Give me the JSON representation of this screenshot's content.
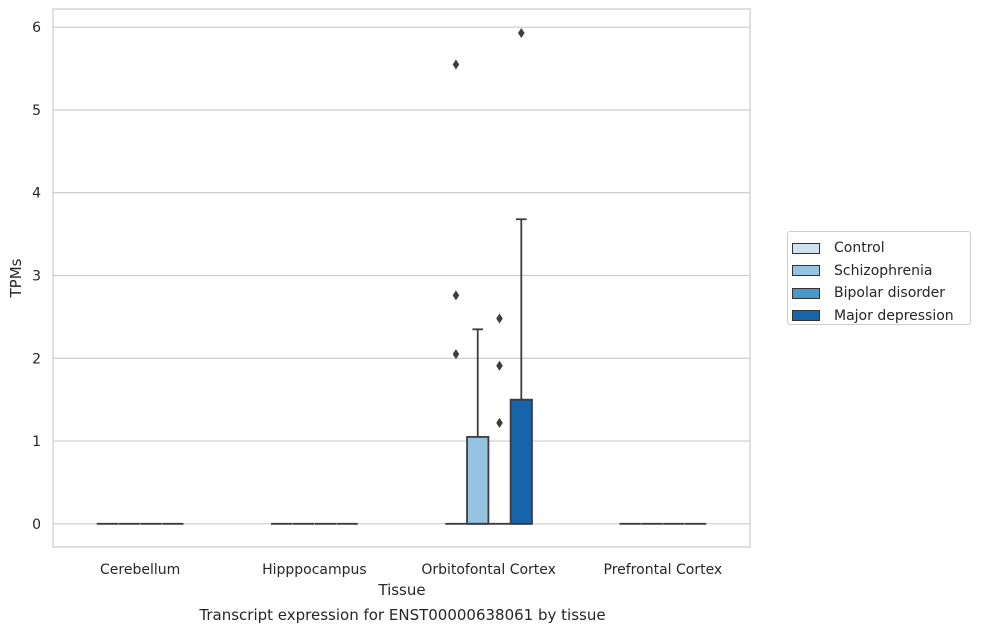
{
  "chart_data": {
    "type": "box",
    "title": "",
    "caption": "Transcript expression for ENST00000638061 by tissue",
    "xlabel": "Tissue",
    "ylabel": "TPMs",
    "ylim": [
      -0.28,
      6.22
    ],
    "yticks": [
      "0",
      "1",
      "2",
      "3",
      "4",
      "5",
      "6"
    ],
    "grid": true,
    "legend_position": "right",
    "categories": [
      "Cerebellum",
      "Hipppocampus",
      "Orbitofontal Cortex",
      "Prefrontal Cortex"
    ],
    "series": [
      {
        "name": "Control",
        "color": "#d0e1f2",
        "boxes": [
          {
            "q1": 0,
            "median": 0,
            "q3": 0,
            "whisker_low": 0,
            "whisker_high": 0,
            "outliers": []
          },
          {
            "q1": 0,
            "median": 0,
            "q3": 0,
            "whisker_low": 0,
            "whisker_high": 0,
            "outliers": []
          },
          {
            "q1": 0,
            "median": 0,
            "q3": 0,
            "whisker_low": 0,
            "whisker_high": 0,
            "outliers": [
              2.05,
              2.76,
              5.55
            ]
          },
          {
            "q1": 0,
            "median": 0,
            "q3": 0,
            "whisker_low": 0,
            "whisker_high": 0,
            "outliers": []
          }
        ]
      },
      {
        "name": "Schizophrenia",
        "color": "#94c4df",
        "boxes": [
          {
            "q1": 0,
            "median": 0,
            "q3": 0,
            "whisker_low": 0,
            "whisker_high": 0,
            "outliers": []
          },
          {
            "q1": 0,
            "median": 0,
            "q3": 0,
            "whisker_low": 0,
            "whisker_high": 0,
            "outliers": []
          },
          {
            "q1": 0,
            "median": 0,
            "q3": 1.05,
            "whisker_low": 0,
            "whisker_high": 2.35,
            "outliers": []
          },
          {
            "q1": 0,
            "median": 0,
            "q3": 0,
            "whisker_low": 0,
            "whisker_high": 0,
            "outliers": []
          }
        ]
      },
      {
        "name": "Bipolar disorder",
        "color": "#4a98c9",
        "boxes": [
          {
            "q1": 0,
            "median": 0,
            "q3": 0,
            "whisker_low": 0,
            "whisker_high": 0,
            "outliers": []
          },
          {
            "q1": 0,
            "median": 0,
            "q3": 0,
            "whisker_low": 0,
            "whisker_high": 0,
            "outliers": []
          },
          {
            "q1": 0,
            "median": 0,
            "q3": 0,
            "whisker_low": 0,
            "whisker_high": 0,
            "outliers": [
              1.22,
              1.91,
              2.48
            ]
          },
          {
            "q1": 0,
            "median": 0,
            "q3": 0,
            "whisker_low": 0,
            "whisker_high": 0,
            "outliers": []
          }
        ]
      },
      {
        "name": "Major depression",
        "color": "#1764ab",
        "boxes": [
          {
            "q1": 0,
            "median": 0,
            "q3": 0,
            "whisker_low": 0,
            "whisker_high": 0,
            "outliers": []
          },
          {
            "q1": 0,
            "median": 0,
            "q3": 0,
            "whisker_low": 0,
            "whisker_high": 0,
            "outliers": []
          },
          {
            "q1": 0,
            "median": 0,
            "q3": 1.5,
            "whisker_low": 0,
            "whisker_high": 3.68,
            "outliers": [
              5.93
            ]
          },
          {
            "q1": 0,
            "median": 0,
            "q3": 0,
            "whisker_low": 0,
            "whisker_high": 0,
            "outliers": []
          }
        ]
      }
    ]
  }
}
